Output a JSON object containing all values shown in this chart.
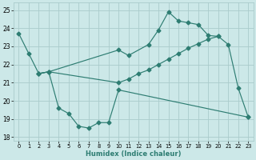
{
  "line1_x": [
    0,
    1,
    2,
    3,
    4,
    5,
    6,
    7,
    8,
    9,
    10,
    23
  ],
  "line1_y": [
    23.7,
    22.6,
    21.5,
    21.6,
    19.6,
    19.3,
    18.6,
    18.5,
    18.8,
    18.8,
    20.6,
    19.1
  ],
  "line2_x": [
    2,
    3,
    10,
    11,
    13,
    14,
    15,
    16,
    17,
    18,
    19,
    20,
    21,
    22,
    23
  ],
  "line2_y": [
    21.5,
    21.6,
    22.8,
    22.5,
    23.1,
    23.9,
    24.9,
    24.4,
    24.3,
    24.2,
    23.6,
    23.55,
    23.1,
    20.7,
    19.1
  ],
  "line3_x": [
    2,
    3,
    10,
    11,
    12,
    13,
    14,
    15,
    16,
    17,
    18,
    19,
    20
  ],
  "line3_y": [
    21.5,
    21.6,
    21.0,
    21.2,
    21.5,
    21.7,
    22.0,
    22.3,
    22.6,
    22.9,
    23.15,
    23.4,
    23.55
  ],
  "color": "#2e7d72",
  "bg_color": "#cce8e8",
  "grid_color": "#aacccc",
  "xlabel": "Humidex (Indice chaleur)",
  "xlim": [
    -0.5,
    23.5
  ],
  "ylim": [
    17.8,
    25.4
  ],
  "yticks": [
    18,
    19,
    20,
    21,
    22,
    23,
    24,
    25
  ],
  "xticks": [
    0,
    1,
    2,
    3,
    4,
    5,
    6,
    7,
    8,
    9,
    10,
    11,
    12,
    13,
    14,
    15,
    16,
    17,
    18,
    19,
    20,
    21,
    22,
    23
  ]
}
